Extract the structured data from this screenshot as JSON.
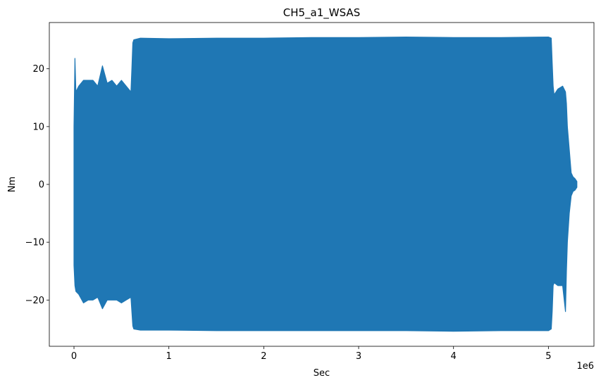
{
  "chart_data": {
    "type": "area",
    "title": "CH5_a1_WSAS",
    "xlabel": "Sec",
    "ylabel": "Nm",
    "x_offset_label": "1e6",
    "xlim": [
      -0.26,
      5.48
    ],
    "ylim": [
      -28,
      28
    ],
    "xticks": [
      0,
      1,
      2,
      3,
      4,
      5
    ],
    "xtick_labels": [
      "0",
      "1",
      "2",
      "3",
      "4",
      "5"
    ],
    "yticks": [
      -20,
      -10,
      0,
      10,
      20
    ],
    "ytick_labels": [
      "−20",
      "−10",
      "0",
      "10",
      "20"
    ],
    "grid": false,
    "legend": "none",
    "series": [
      {
        "color": "#1f77b4",
        "envelope": {
          "x": [
            0.0,
            0.01,
            0.02,
            0.05,
            0.1,
            0.15,
            0.2,
            0.25,
            0.3,
            0.35,
            0.4,
            0.45,
            0.5,
            0.55,
            0.6,
            0.61,
            0.62,
            0.63,
            0.7,
            1.0,
            1.5,
            2.0,
            2.5,
            3.0,
            3.5,
            4.0,
            4.5,
            5.0,
            5.03,
            5.04,
            5.05,
            5.06,
            5.1,
            5.15,
            5.18,
            5.19,
            5.2,
            5.22,
            5.24,
            5.26,
            5.28,
            5.3
          ],
          "upper": [
            10,
            21.8,
            16,
            17,
            18,
            18,
            18,
            17,
            20.5,
            17.5,
            18,
            17,
            18,
            17,
            16,
            20,
            24.5,
            25,
            25.3,
            25.2,
            25.3,
            25.3,
            25.4,
            25.4,
            25.5,
            25.4,
            25.4,
            25.5,
            25.3,
            21,
            17,
            15.5,
            16.5,
            17,
            16,
            14,
            10,
            6,
            2,
            1.3,
            1,
            0.5
          ],
          "lower": [
            -14,
            -17.5,
            -18.5,
            -19,
            -20.5,
            -20,
            -20,
            -19.5,
            -21.5,
            -20,
            -20,
            -20,
            -20.5,
            -20,
            -19.5,
            -22,
            -24.5,
            -25,
            -25.2,
            -25.2,
            -25.3,
            -25.3,
            -25.3,
            -25.3,
            -25.3,
            -25.4,
            -25.3,
            -25.3,
            -25,
            -22,
            -17.5,
            -17,
            -17.5,
            -17.5,
            -22,
            -15,
            -10,
            -5,
            -2,
            -1.2,
            -1,
            -0.5
          ]
        }
      }
    ]
  }
}
